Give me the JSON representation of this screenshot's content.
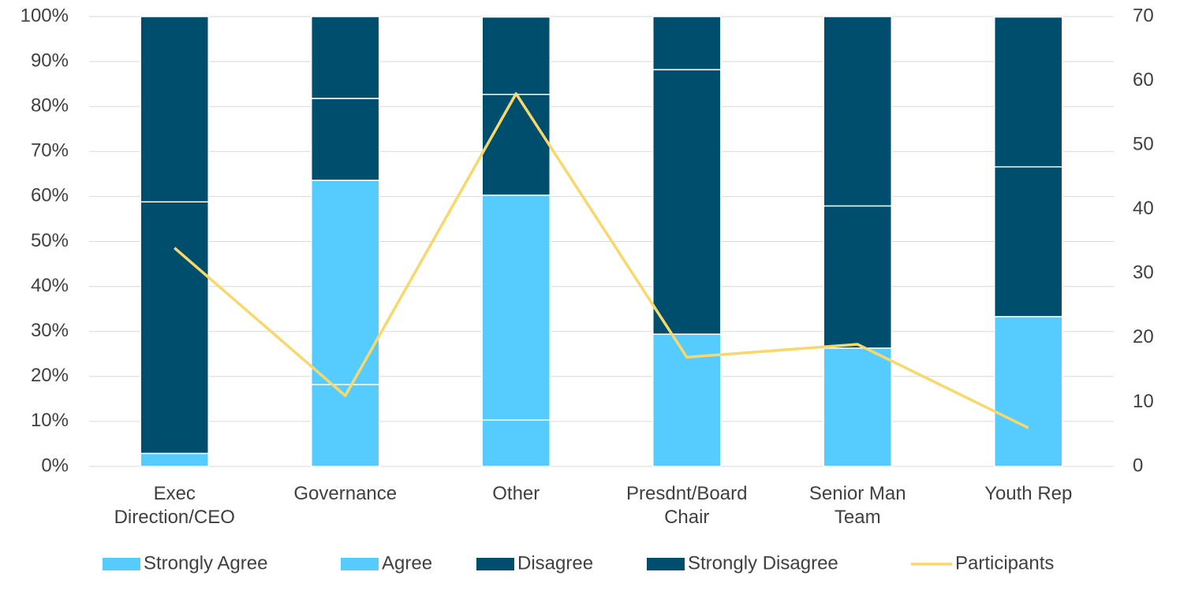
{
  "chart_data": {
    "type": "bar",
    "categories": [
      "Exec Direction/CEO",
      "Governance",
      "Other",
      "Presdnt/Board Chair",
      "Senior Man Team",
      "Youth Rep"
    ],
    "stacked": true,
    "series": [
      {
        "name": "Strongly Agree",
        "color": "#55ccfd",
        "values": [
          0,
          18.2,
          10.3,
          0,
          0,
          0
        ]
      },
      {
        "name": "Agree",
        "color": "#55ccfd",
        "values": [
          2.9,
          45.4,
          50,
          29.4,
          26.3,
          33.3
        ]
      },
      {
        "name": "Disagree",
        "color": "#004e6e",
        "values": [
          55.9,
          18.2,
          22.4,
          58.8,
          31.6,
          33.3
        ]
      },
      {
        "name": "Strongly Disagree",
        "color": "#004e6e",
        "values": [
          41.2,
          18.2,
          17.2,
          11.8,
          42.1,
          33.3
        ]
      },
      {
        "name": "Participants",
        "type": "line",
        "axis": "y2",
        "color": "#f9d86b",
        "values": [
          34,
          11,
          58,
          17,
          19,
          6
        ]
      }
    ],
    "ylim": [
      0,
      100
    ],
    "yticks": [
      {
        "value": 0,
        "label": "0%"
      },
      {
        "value": 10,
        "label": "10%"
      },
      {
        "value": 20,
        "label": "20%"
      },
      {
        "value": 30,
        "label": "30%"
      },
      {
        "value": 40,
        "label": "40%"
      },
      {
        "value": 50,
        "label": "50%"
      },
      {
        "value": 60,
        "label": "60%"
      },
      {
        "value": 70,
        "label": "70%"
      },
      {
        "value": 80,
        "label": "80%"
      },
      {
        "value": 90,
        "label": "90%"
      },
      {
        "value": 100,
        "label": "100%"
      }
    ],
    "y2lim": [
      0,
      70
    ],
    "y2ticks": [
      0,
      10,
      20,
      30,
      40,
      50,
      60,
      70
    ],
    "grid": true,
    "legend": "bottom"
  }
}
